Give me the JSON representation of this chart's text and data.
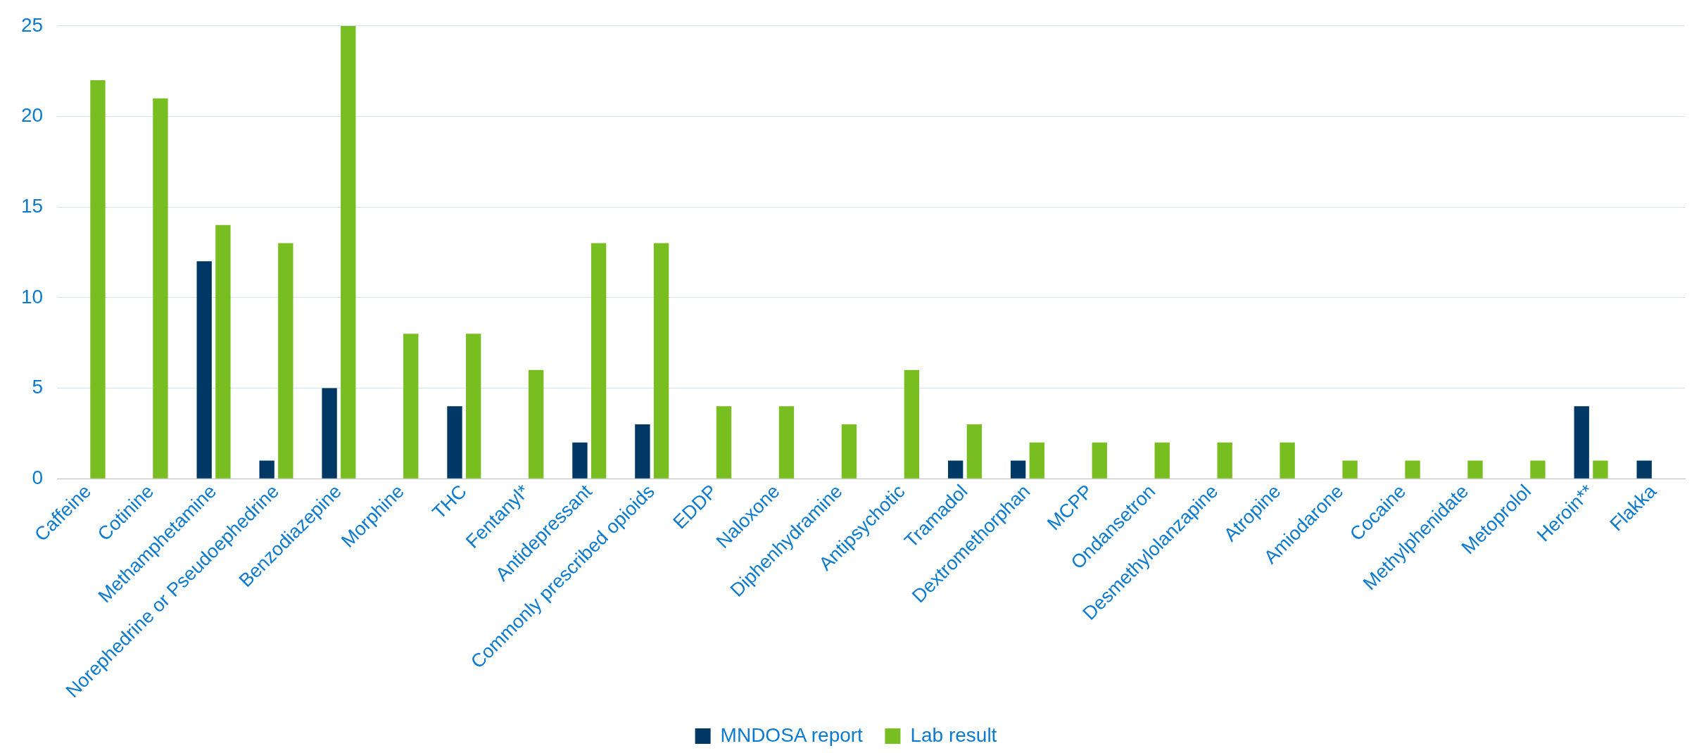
{
  "chart_data": {
    "type": "bar",
    "categories": [
      "Caffeine",
      "Cotinine",
      "Methamphetamine",
      "Norephedrine or Pseudoephedrine",
      "Benzodiazepine",
      "Morphine",
      "THC",
      "Fentanyl*",
      "Antidepressant",
      "Commonly prescribed opioids",
      "EDDP",
      "Naloxone",
      "Diphenhydramine",
      "Antipsychotic",
      "Tramadol",
      "Dextromethorphan",
      "MCPP",
      "Ondansetron",
      "Desmethylolanzapine",
      "Atropine",
      "Amiodarone",
      "Cocaine",
      "Methylphenidate",
      "Metoprolol",
      "Heroin**",
      "Flakka"
    ],
    "series": [
      {
        "name": "MNDOSA report",
        "color": "#003865",
        "values": [
          0,
          0,
          12,
          1,
          5,
          0,
          4,
          0,
          2,
          3,
          0,
          0,
          0,
          0,
          1,
          1,
          0,
          0,
          0,
          0,
          0,
          0,
          0,
          0,
          4,
          1
        ]
      },
      {
        "name": "Lab result",
        "color": "#78be21",
        "values": [
          22,
          21,
          14,
          13,
          25,
          8,
          8,
          6,
          13,
          13,
          4,
          4,
          3,
          6,
          3,
          2,
          2,
          2,
          2,
          2,
          1,
          1,
          1,
          1,
          1,
          0
        ]
      }
    ],
    "ylim": [
      0,
      25
    ],
    "yticks": [
      0,
      5,
      10,
      15,
      20,
      25
    ],
    "grid": "y",
    "legend": "bottom"
  }
}
